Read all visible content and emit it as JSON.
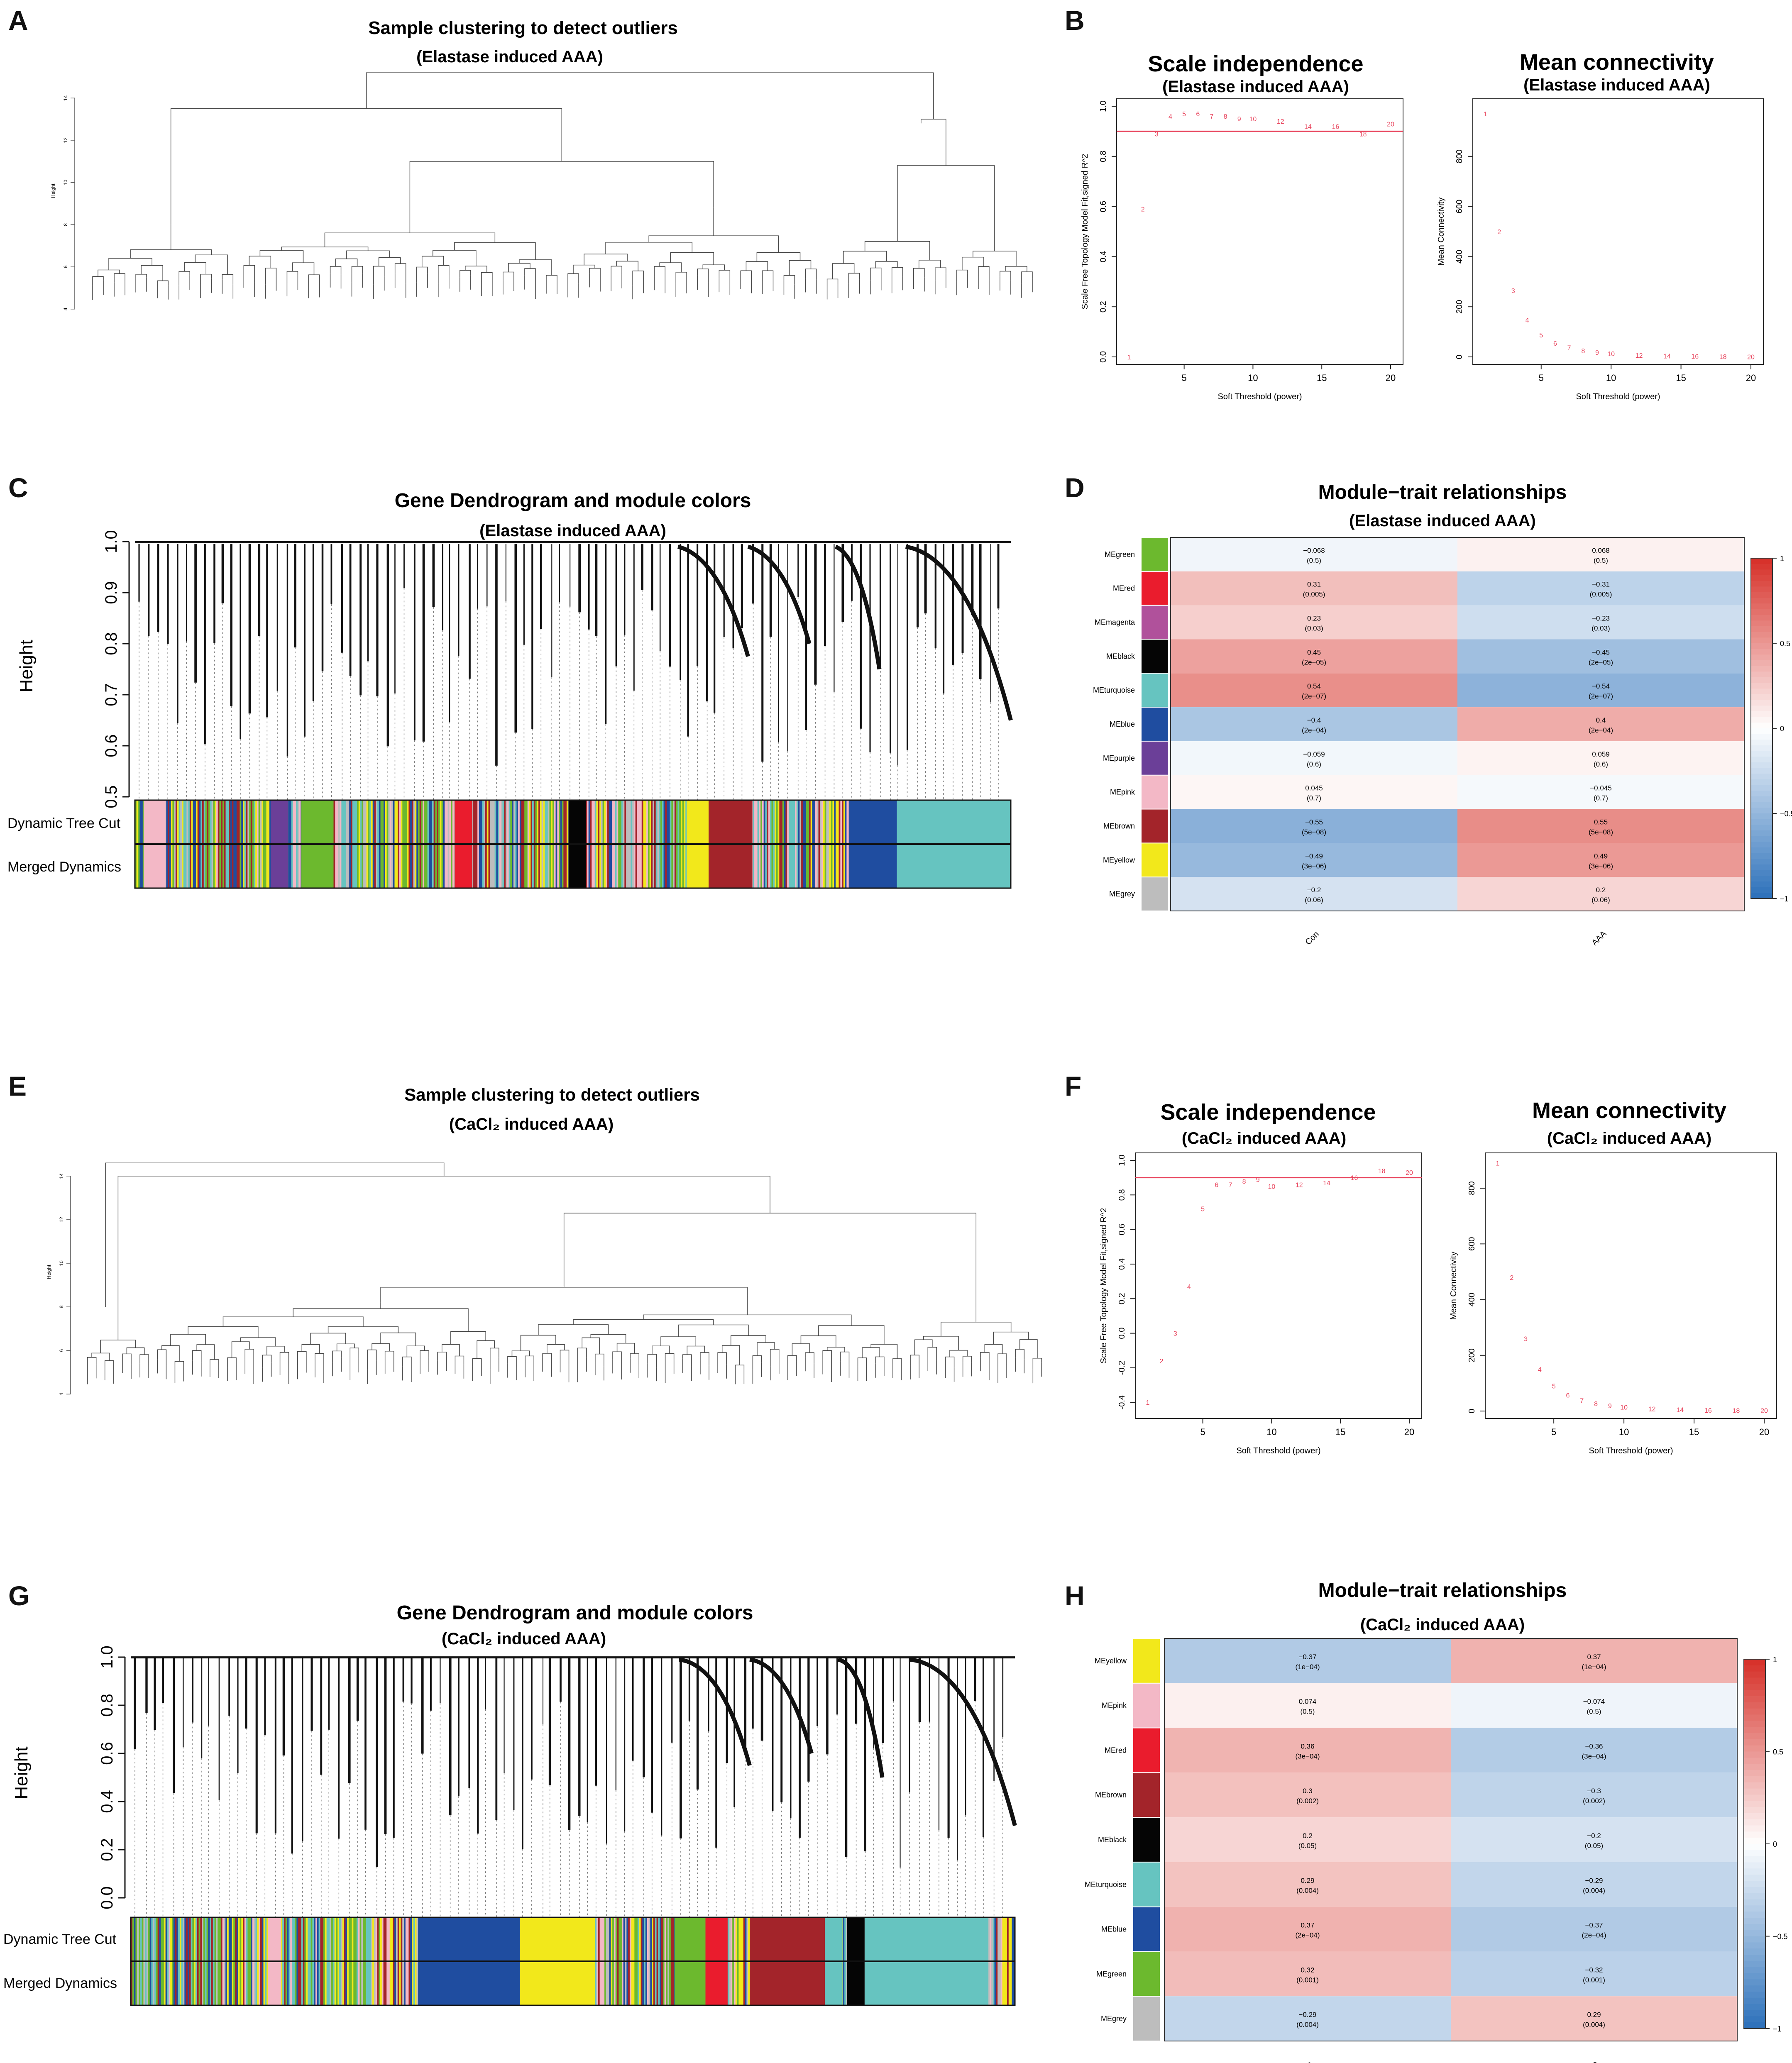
{
  "figure": {
    "background": "#ffffff",
    "accent": "#e8415a"
  },
  "chart_data": [
    {
      "panel": "A",
      "type": "dendrogram",
      "title": "Sample clustering to detect outliers",
      "subtitle": "(Elastase induced AAA)",
      "ylabel": "Height",
      "yticks": [
        4,
        6,
        8,
        10,
        12,
        14
      ],
      "leaf_count": 88
    },
    {
      "panel": "B",
      "type": "scatter",
      "plots": [
        {
          "title": "Scale independence",
          "subtitle": "(Elastase induced AAA)",
          "xlabel": "Soft Threshold (power)",
          "ylabel": "Scale Free Topology Model Fit,signed R^2",
          "xlim": [
            1,
            20
          ],
          "ylim": [
            0,
            1
          ],
          "xticks": [
            5,
            10,
            15,
            20
          ],
          "yticks": [
            0.0,
            0.2,
            0.4,
            0.6,
            0.8,
            1.0
          ],
          "hline": 0.9,
          "points": [
            [
              1,
              0.0
            ],
            [
              2,
              0.59
            ],
            [
              3,
              0.89
            ],
            [
              4,
              0.96
            ],
            [
              5,
              0.97
            ],
            [
              6,
              0.97
            ],
            [
              7,
              0.96
            ],
            [
              8,
              0.96
            ],
            [
              9,
              0.95
            ],
            [
              10,
              0.95
            ],
            [
              12,
              0.94
            ],
            [
              14,
              0.92
            ],
            [
              16,
              0.92
            ],
            [
              18,
              0.89
            ],
            [
              20,
              0.93
            ]
          ]
        },
        {
          "title": "Mean connectivity",
          "subtitle": "(Elastase induced AAA)",
          "xlabel": "Soft Threshold (power)",
          "ylabel": "Mean Connectivity",
          "xlim": [
            1,
            20
          ],
          "ylim": [
            0,
            1000
          ],
          "xticks": [
            5,
            10,
            15,
            20
          ],
          "yticks": [
            0,
            200,
            400,
            600,
            800
          ],
          "points": [
            [
              1,
              970
            ],
            [
              2,
              500
            ],
            [
              3,
              265
            ],
            [
              4,
              147
            ],
            [
              5,
              88
            ],
            [
              6,
              55
            ],
            [
              7,
              37
            ],
            [
              8,
              25
            ],
            [
              9,
              18
            ],
            [
              10,
              13
            ],
            [
              12,
              7
            ],
            [
              14,
              4
            ],
            [
              16,
              3
            ],
            [
              18,
              2
            ],
            [
              20,
              1
            ]
          ]
        }
      ]
    },
    {
      "panel": "C",
      "type": "dendrogram",
      "title": "Gene Dendrogram and module colors",
      "subtitle": "(Elastase induced AAA)",
      "ylabel": "Height",
      "yticks": [
        "0.5",
        "0.6",
        "0.7",
        "0.8",
        "0.9",
        "1.0"
      ],
      "ylim": [
        0.5,
        1.0
      ],
      "rows": [
        "Dynamic Tree Cut",
        "Merged Dynamics"
      ],
      "color_blocks": [
        {
          "color": "pink",
          "start": 0.01,
          "end": 0.035
        },
        {
          "color": "purple",
          "start": 0.155,
          "end": 0.175
        },
        {
          "color": "green",
          "start": 0.19,
          "end": 0.225
        },
        {
          "color": "red",
          "start": 0.365,
          "end": 0.385
        },
        {
          "color": "black",
          "start": 0.495,
          "end": 0.515
        },
        {
          "color": "yellow",
          "start": 0.63,
          "end": 0.655
        },
        {
          "color": "brown",
          "start": 0.655,
          "end": 0.705
        },
        {
          "color": "blue",
          "start": 0.815,
          "end": 0.87
        },
        {
          "color": "turquoise",
          "start": 0.87,
          "end": 1.0
        }
      ]
    },
    {
      "panel": "D",
      "type": "heatmap",
      "title": "Module−trait relationships",
      "subtitle": "(Elastase induced AAA)",
      "columns": [
        "Con",
        "AAA"
      ],
      "colorbar": {
        "ticks": [
          "1",
          "0.5",
          "0",
          "−0.5",
          "−1"
        ],
        "min": -1,
        "max": 1
      },
      "rows": [
        {
          "module": "MEgreen",
          "color": "green",
          "values": [
            -0.068,
            0.068
          ],
          "labels": [
            "−0.068",
            "0.068"
          ],
          "pvals": [
            "(0.5)",
            "(0.5)"
          ]
        },
        {
          "module": "MEred",
          "color": "red",
          "values": [
            0.31,
            -0.31
          ],
          "labels": [
            "0.31",
            "−0.31"
          ],
          "pvals": [
            "(0.005)",
            "(0.005)"
          ]
        },
        {
          "module": "MEmagenta",
          "color": "magenta",
          "values": [
            0.23,
            -0.23
          ],
          "labels": [
            "0.23",
            "−0.23"
          ],
          "pvals": [
            "(0.03)",
            "(0.03)"
          ]
        },
        {
          "module": "MEblack",
          "color": "black",
          "values": [
            0.45,
            -0.45
          ],
          "labels": [
            "0.45",
            "−0.45"
          ],
          "pvals": [
            "(2e−05)",
            "(2e−05)"
          ]
        },
        {
          "module": "MEturquoise",
          "color": "turquoise",
          "values": [
            0.54,
            -0.54
          ],
          "labels": [
            "0.54",
            "−0.54"
          ],
          "pvals": [
            "(2e−07)",
            "(2e−07)"
          ]
        },
        {
          "module": "MEblue",
          "color": "blue",
          "values": [
            -0.4,
            0.4
          ],
          "labels": [
            "−0.4",
            "0.4"
          ],
          "pvals": [
            "(2e−04)",
            "(2e−04)"
          ]
        },
        {
          "module": "MEpurple",
          "color": "purple",
          "values": [
            -0.059,
            0.059
          ],
          "labels": [
            "−0.059",
            "0.059"
          ],
          "pvals": [
            "(0.6)",
            "(0.6)"
          ]
        },
        {
          "module": "MEpink",
          "color": "pink",
          "values": [
            0.045,
            -0.045
          ],
          "labels": [
            "0.045",
            "−0.045"
          ],
          "pvals": [
            "(0.7)",
            "(0.7)"
          ]
        },
        {
          "module": "MEbrown",
          "color": "brown",
          "values": [
            -0.55,
            0.55
          ],
          "labels": [
            "−0.55",
            "0.55"
          ],
          "pvals": [
            "(5e−08)",
            "(5e−08)"
          ]
        },
        {
          "module": "MEyellow",
          "color": "yellow",
          "values": [
            -0.49,
            0.49
          ],
          "labels": [
            "−0.49",
            "0.49"
          ],
          "pvals": [
            "(3e−06)",
            "(3e−06)"
          ]
        },
        {
          "module": "MEgrey",
          "color": "grey",
          "values": [
            -0.2,
            0.2
          ],
          "labels": [
            "−0.2",
            "0.2"
          ],
          "pvals": [
            "(0.06)",
            "(0.06)"
          ]
        }
      ]
    },
    {
      "panel": "E",
      "type": "dendrogram",
      "title": "Sample clustering to detect outliers",
      "subtitle": "(CaCl₂ induced AAA)",
      "ylabel": "Height",
      "yticks": [
        4,
        6,
        8,
        10,
        12,
        14
      ],
      "leaf_count": 110
    },
    {
      "panel": "F",
      "type": "scatter",
      "plots": [
        {
          "title": "Scale independence",
          "subtitle": "(CaCl₂ induced AAA)",
          "xlabel": "Soft Threshold (power)",
          "ylabel": "Scale Free Topology Model Fit,signed R^2",
          "xlim": [
            1,
            20
          ],
          "ylim": [
            -0.45,
            1.0
          ],
          "xticks": [
            5,
            10,
            15,
            20
          ],
          "yticks": [
            -0.4,
            -0.2,
            0.0,
            0.2,
            0.4,
            0.6,
            0.8,
            1.0
          ],
          "hline": 0.9,
          "points": [
            [
              1,
              -0.4
            ],
            [
              2,
              -0.16
            ],
            [
              3,
              0.0
            ],
            [
              4,
              0.27
            ],
            [
              5,
              0.72
            ],
            [
              6,
              0.86
            ],
            [
              7,
              0.86
            ],
            [
              8,
              0.88
            ],
            [
              9,
              0.89
            ],
            [
              10,
              0.85
            ],
            [
              12,
              0.86
            ],
            [
              14,
              0.87
            ],
            [
              16,
              0.9
            ],
            [
              18,
              0.94
            ],
            [
              20,
              0.93
            ]
          ]
        },
        {
          "title": "Mean connectivity",
          "subtitle": "(CaCl₂ induced AAA)",
          "xlabel": "Soft Threshold (power)",
          "ylabel": "Mean Connectivity",
          "xlim": [
            1,
            20
          ],
          "ylim": [
            0,
            900
          ],
          "xticks": [
            5,
            10,
            15,
            20
          ],
          "yticks": [
            0,
            200,
            400,
            600,
            800
          ],
          "points": [
            [
              1,
              890
            ],
            [
              2,
              480
            ],
            [
              3,
              260
            ],
            [
              4,
              150
            ],
            [
              5,
              90
            ],
            [
              6,
              57
            ],
            [
              7,
              38
            ],
            [
              8,
              27
            ],
            [
              9,
              19
            ],
            [
              10,
              14
            ],
            [
              12,
              8
            ],
            [
              14,
              5
            ],
            [
              16,
              3
            ],
            [
              18,
              2
            ],
            [
              20,
              2
            ]
          ]
        }
      ]
    },
    {
      "panel": "G",
      "type": "dendrogram",
      "title": "Gene Dendrogram and module colors",
      "subtitle": "(CaCl₂ induced AAA)",
      "ylabel": "Height",
      "yticks": [
        "0.0",
        "0.2",
        "0.4",
        "0.6",
        "0.8",
        "1.0"
      ],
      "ylim": [
        0.0,
        1.0
      ],
      "rows": [
        "Dynamic Tree Cut",
        "Merged Dynamics"
      ],
      "color_blocks": [
        {
          "color": "pink",
          "start": 0.155,
          "end": 0.17
        },
        {
          "color": "blue",
          "start": 0.325,
          "end": 0.44
        },
        {
          "color": "yellow",
          "start": 0.44,
          "end": 0.525
        },
        {
          "color": "green",
          "start": 0.615,
          "end": 0.65
        },
        {
          "color": "red",
          "start": 0.65,
          "end": 0.675
        },
        {
          "color": "brown",
          "start": 0.7,
          "end": 0.785
        },
        {
          "color": "turquoise",
          "start": 0.785,
          "end": 0.805
        },
        {
          "color": "black",
          "start": 0.81,
          "end": 0.83
        },
        {
          "color": "turquoise",
          "start": 0.83,
          "end": 0.97
        }
      ]
    },
    {
      "panel": "H",
      "type": "heatmap",
      "title": "Module−trait relationships",
      "subtitle": "(CaCl₂ induced AAA)",
      "columns": [
        "Con",
        "AAA"
      ],
      "colorbar": {
        "ticks": [
          "1",
          "0.5",
          "0",
          "−0.5",
          "−1"
        ],
        "min": -1,
        "max": 1
      },
      "rows": [
        {
          "module": "MEyellow",
          "color": "yellow",
          "values": [
            -0.37,
            0.37
          ],
          "labels": [
            "−0.37",
            "0.37"
          ],
          "pvals": [
            "(1e−04)",
            "(1e−04)"
          ]
        },
        {
          "module": "MEpink",
          "color": "pink",
          "values": [
            0.074,
            -0.074
          ],
          "labels": [
            "0.074",
            "−0.074"
          ],
          "pvals": [
            "(0.5)",
            "(0.5)"
          ]
        },
        {
          "module": "MEred",
          "color": "red",
          "values": [
            0.36,
            -0.36
          ],
          "labels": [
            "0.36",
            "−0.36"
          ],
          "pvals": [
            "(3e−04)",
            "(3e−04)"
          ]
        },
        {
          "module": "MEbrown",
          "color": "brown",
          "values": [
            0.3,
            -0.3
          ],
          "labels": [
            "0.3",
            "−0.3"
          ],
          "pvals": [
            "(0.002)",
            "(0.002)"
          ]
        },
        {
          "module": "MEblack",
          "color": "black",
          "values": [
            0.2,
            -0.2
          ],
          "labels": [
            "0.2",
            "−0.2"
          ],
          "pvals": [
            "(0.05)",
            "(0.05)"
          ]
        },
        {
          "module": "MEturquoise",
          "color": "turquoise",
          "values": [
            0.29,
            -0.29
          ],
          "labels": [
            "0.29",
            "−0.29"
          ],
          "pvals": [
            "(0.004)",
            "(0.004)"
          ]
        },
        {
          "module": "MEblue",
          "color": "blue",
          "values": [
            0.37,
            -0.37
          ],
          "labels": [
            "0.37",
            "−0.37"
          ],
          "pvals": [
            "(2e−04)",
            "(2e−04)"
          ]
        },
        {
          "module": "MEgreen",
          "color": "green",
          "values": [
            0.32,
            -0.32
          ],
          "labels": [
            "0.32",
            "−0.32"
          ],
          "pvals": [
            "(0.001)",
            "(0.001)"
          ]
        },
        {
          "module": "MEgrey",
          "color": "grey",
          "values": [
            -0.29,
            0.29
          ],
          "labels": [
            "−0.29",
            "0.29"
          ],
          "pvals": [
            "(0.004)",
            "(0.004)"
          ]
        }
      ]
    }
  ]
}
